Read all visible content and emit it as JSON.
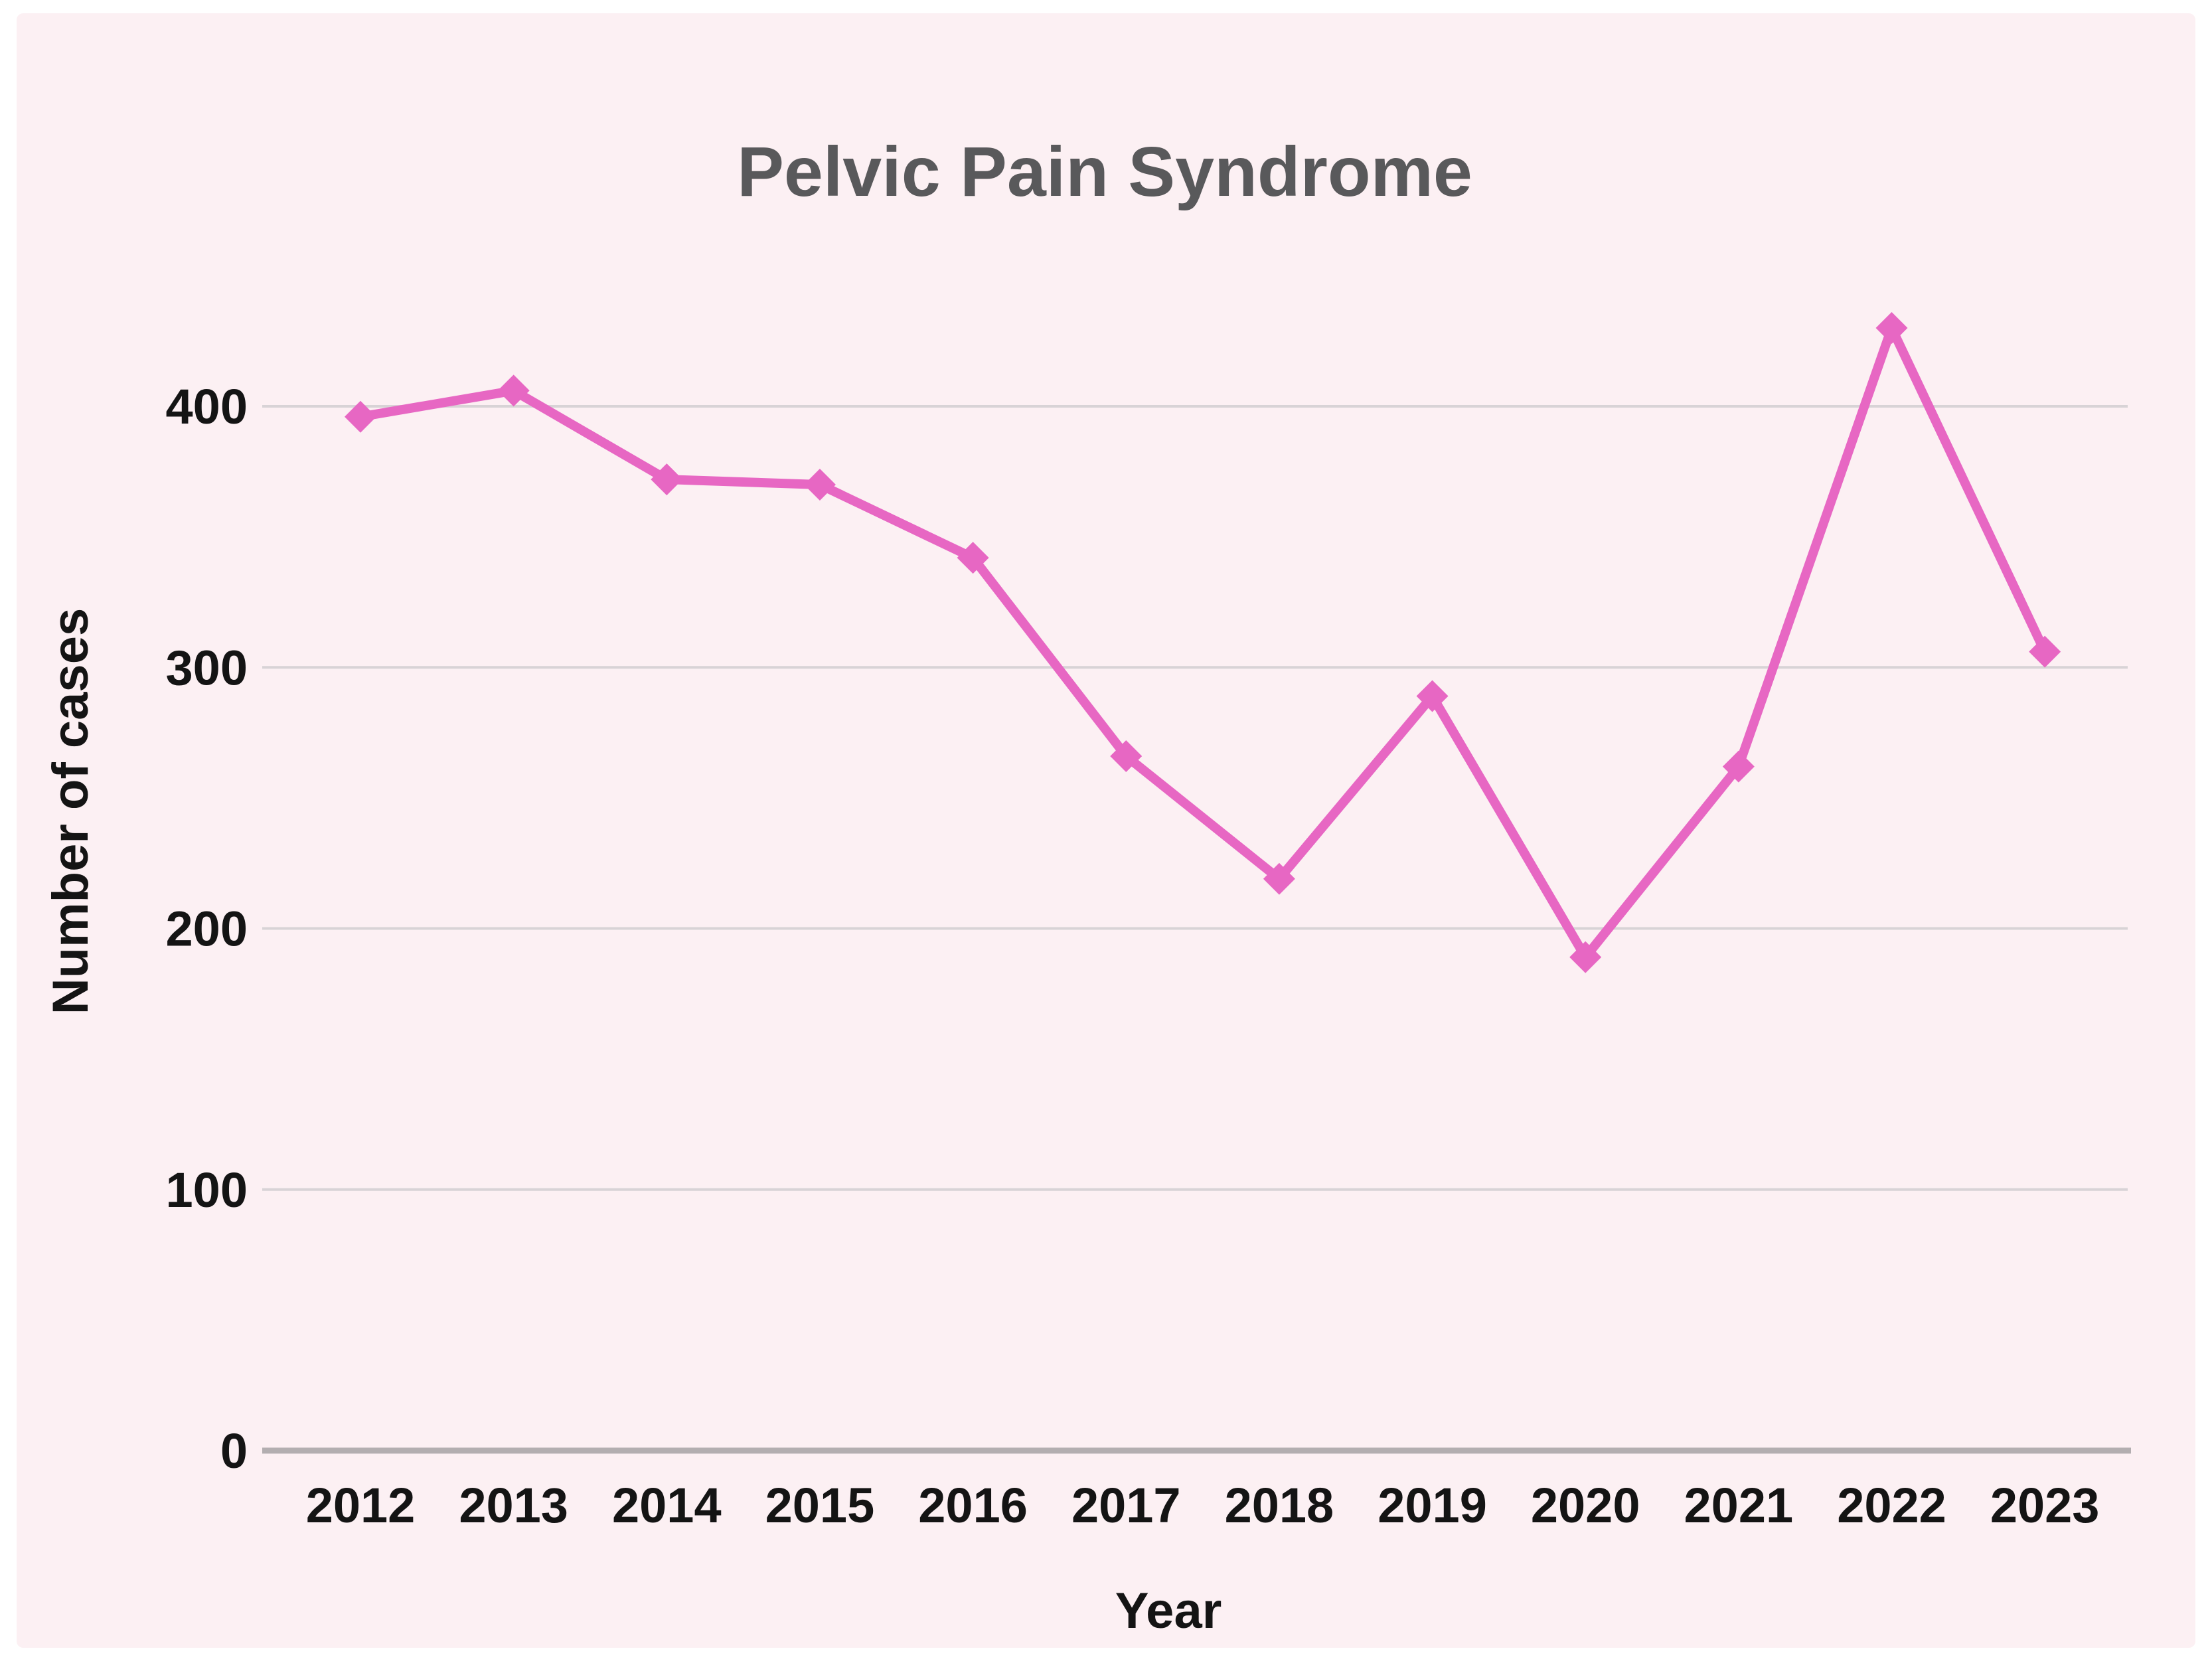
{
  "chart_data": {
    "type": "line",
    "title": "Pelvic Pain Syndrome",
    "xlabel": "Year",
    "ylabel": "Number of cases",
    "x": [
      "2012",
      "2013",
      "2014",
      "2015",
      "2016",
      "2017",
      "2018",
      "2019",
      "2020",
      "2021",
      "2022",
      "2023"
    ],
    "values": [
      396,
      406,
      372,
      370,
      342,
      266,
      219,
      289,
      189,
      262,
      430,
      306
    ],
    "yticks": [
      0,
      100,
      200,
      300,
      400
    ],
    "ylim": [
      0,
      450
    ],
    "grid": true,
    "legend": false,
    "marker": "diamond"
  },
  "colors": {
    "page_bg": "#ffffff",
    "card_bg": "#fcf0f3",
    "line": "#e767c3",
    "grid": "#d8d3d6",
    "axis": "#b3aeb0",
    "tick_text": "#141414",
    "title_text": "#59595b"
  }
}
